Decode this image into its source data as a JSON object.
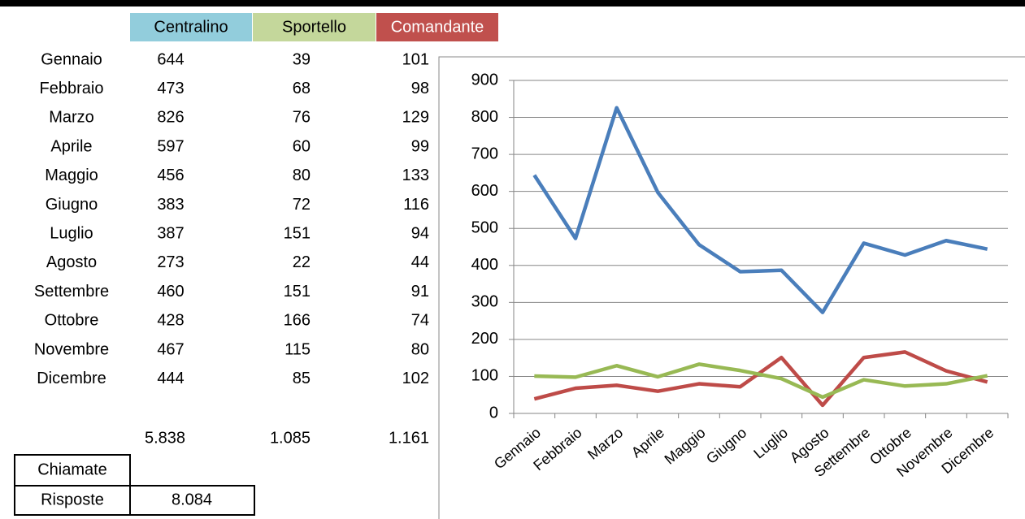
{
  "table": {
    "header_colors": [
      "#92cddc",
      "#c4d79b",
      "#c0504d"
    ],
    "header_text_colors": [
      "#000000",
      "#000000",
      "#ffffff"
    ],
    "totals": [
      "5.838",
      "1.085",
      "1.161"
    ],
    "summary": {
      "label_1": "Chiamate",
      "label_2": "Risposte",
      "value": "8.084"
    }
  },
  "chart_data": {
    "type": "line",
    "categories": [
      "Gennaio",
      "Febbraio",
      "Marzo",
      "Aprile",
      "Maggio",
      "Giugno",
      "Luglio",
      "Agosto",
      "Settembre",
      "Ottobre",
      "Novembre",
      "Dicembre"
    ],
    "series": [
      {
        "name": "Centralino",
        "color": "#4a7ebb",
        "values": [
          644,
          473,
          826,
          597,
          456,
          383,
          387,
          273,
          460,
          428,
          467,
          444
        ]
      },
      {
        "name": "Sportello",
        "color": "#be4b48",
        "values": [
          39,
          68,
          76,
          60,
          80,
          72,
          151,
          22,
          151,
          166,
          115,
          85
        ]
      },
      {
        "name": "Comandante",
        "color": "#98b954",
        "values": [
          101,
          98,
          129,
          99,
          133,
          116,
          94,
          44,
          91,
          74,
          80,
          102
        ]
      }
    ],
    "ylim": [
      0,
      900
    ],
    "yticks": [
      0,
      100,
      200,
      300,
      400,
      500,
      600,
      700,
      800,
      900
    ],
    "grid": true
  }
}
